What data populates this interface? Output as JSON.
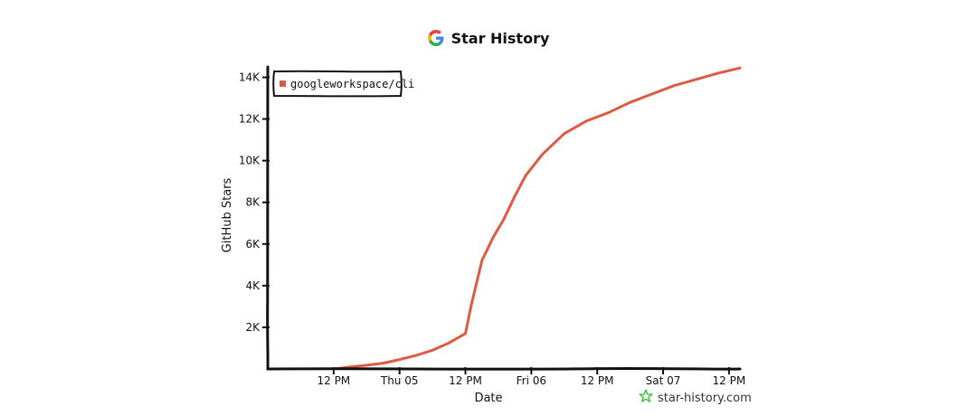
{
  "header": {
    "title": "Star History",
    "logo_icon": "google-g-icon"
  },
  "footer": {
    "site": "star-history.com",
    "icon": "star-icon",
    "icon_color": "#3dc13c"
  },
  "colors": {
    "line": "#dd5b43",
    "axis": "#111111",
    "legend_border": "#111111"
  },
  "chart_data": {
    "type": "line",
    "title": "Star History",
    "xlabel": "Date",
    "ylabel": "GitHub Stars",
    "ylim": [
      0,
      14500
    ],
    "yticks": [
      {
        "value": 2000,
        "label": "2K"
      },
      {
        "value": 4000,
        "label": "4K"
      },
      {
        "value": 6000,
        "label": "6K"
      },
      {
        "value": 8000,
        "label": "8K"
      },
      {
        "value": 10000,
        "label": "10K"
      },
      {
        "value": 12000,
        "label": "12K"
      },
      {
        "value": 14000,
        "label": "14K"
      }
    ],
    "xlim": [
      "Wed 04 00:00",
      "Sat 07 14:00"
    ],
    "xticks": [
      {
        "value": "Wed 04 12:00",
        "label": "12 PM"
      },
      {
        "value": "Thu 05 00:00",
        "label": "Thu 05"
      },
      {
        "value": "Thu 05 12:00",
        "label": "12 PM"
      },
      {
        "value": "Fri 06 00:00",
        "label": "Fri 06"
      },
      {
        "value": "Fri 06 12:00",
        "label": "12 PM"
      },
      {
        "value": "Sat 07 00:00",
        "label": "Sat 07"
      },
      {
        "value": "Sat 07 12:00",
        "label": "12 PM"
      }
    ],
    "grid": false,
    "legend_position": "top-left",
    "series": [
      {
        "name": "googleworkspace/cli",
        "color": "#dd5b43",
        "points": [
          {
            "x": "Wed 04 12:00",
            "y": 0
          },
          {
            "x": "Wed 04 15:00",
            "y": 100
          },
          {
            "x": "Wed 04 18:00",
            "y": 180
          },
          {
            "x": "Wed 04 21:00",
            "y": 280
          },
          {
            "x": "Thu 05 00:00",
            "y": 450
          },
          {
            "x": "Thu 05 03:00",
            "y": 650
          },
          {
            "x": "Thu 05 06:00",
            "y": 900
          },
          {
            "x": "Thu 05 09:00",
            "y": 1250
          },
          {
            "x": "Thu 05 12:00",
            "y": 1700
          },
          {
            "x": "Thu 05 13:00",
            "y": 3000
          },
          {
            "x": "Thu 05 15:00",
            "y": 5200
          },
          {
            "x": "Thu 05 17:00",
            "y": 6300
          },
          {
            "x": "Thu 05 19:00",
            "y": 7200
          },
          {
            "x": "Thu 05 21:00",
            "y": 8300
          },
          {
            "x": "Thu 05 23:00",
            "y": 9300
          },
          {
            "x": "Fri 06 02:00",
            "y": 10300
          },
          {
            "x": "Fri 06 06:00",
            "y": 11300
          },
          {
            "x": "Fri 06 10:00",
            "y": 11900
          },
          {
            "x": "Fri 06 14:00",
            "y": 12300
          },
          {
            "x": "Fri 06 18:00",
            "y": 12800
          },
          {
            "x": "Fri 06 22:00",
            "y": 13200
          },
          {
            "x": "Sat 07 02:00",
            "y": 13600
          },
          {
            "x": "Sat 07 06:00",
            "y": 13900
          },
          {
            "x": "Sat 07 10:00",
            "y": 14200
          },
          {
            "x": "Sat 07 14:00",
            "y": 14450
          }
        ]
      }
    ]
  }
}
